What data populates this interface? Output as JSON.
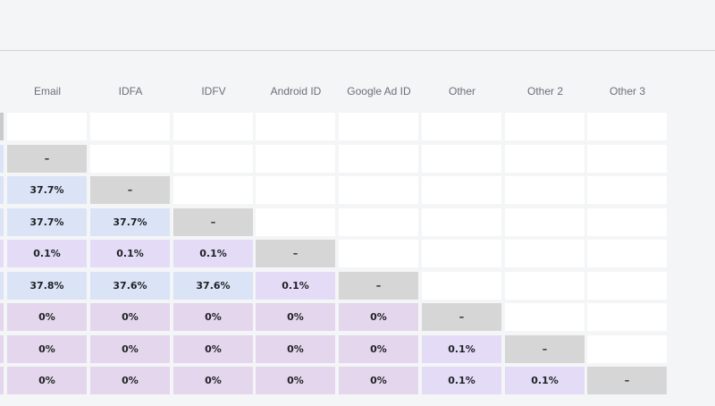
{
  "columns": [
    "Email",
    "IDFA",
    "IDFV",
    "Android ID",
    "Google Ad ID",
    "Other",
    "Other 2",
    "Other 3"
  ],
  "rows": [
    [
      "",
      "",
      "",
      "",
      "",
      "",
      "",
      ""
    ],
    [
      "–",
      "",
      "",
      "",
      "",
      "",
      "",
      ""
    ],
    [
      "37.7%",
      "–",
      "",
      "",
      "",
      "",
      "",
      ""
    ],
    [
      "37.7%",
      "37.7%",
      "–",
      "",
      "",
      "",
      "",
      ""
    ],
    [
      "0.1%",
      "0.1%",
      "0.1%",
      "–",
      "",
      "",
      "",
      ""
    ],
    [
      "37.8%",
      "37.6%",
      "37.6%",
      "0.1%",
      "–",
      "",
      "",
      ""
    ],
    [
      "0%",
      "0%",
      "0%",
      "0%",
      "0%",
      "–",
      "",
      ""
    ],
    [
      "0%",
      "0%",
      "0%",
      "0%",
      "0%",
      "0.1%",
      "–",
      ""
    ],
    [
      "0%",
      "0%",
      "0%",
      "0%",
      "0%",
      "0.1%",
      "0.1%",
      "–"
    ]
  ],
  "left_edge_colors": [
    "#c9cacc",
    "#dbe4f6",
    "#dbe4f6",
    "#dbe4f6",
    "#e4dcf7",
    "#dbe4f6",
    "#e4d6ec",
    "#e4d6ec",
    "#e4d6ec"
  ],
  "colors": {
    "empty": "#ffffff",
    "diagonal": "#d6d6d6",
    "blue": "#dbe4f6",
    "lavender": "#e4dcf7",
    "mauve": "#e4d6ec"
  }
}
